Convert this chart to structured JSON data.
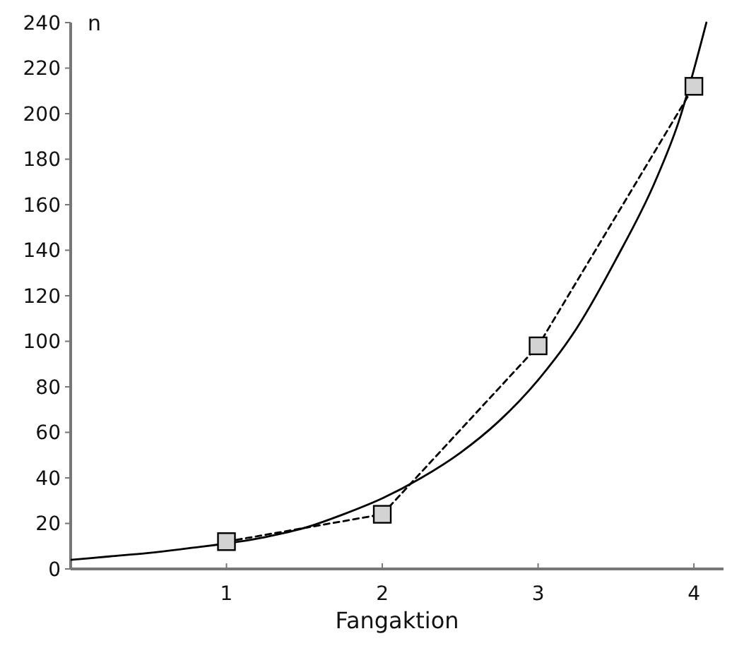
{
  "chart_data": {
    "type": "line",
    "xlabel": "Fangaktion",
    "ylabel": "n",
    "xlim": [
      0,
      4.19
    ],
    "ylim": [
      0,
      240
    ],
    "xticks": [
      1,
      2,
      3,
      4
    ],
    "yticks": [
      0,
      20,
      40,
      60,
      80,
      100,
      120,
      140,
      160,
      180,
      200,
      220,
      240
    ],
    "series": [
      {
        "color": "#000000",
        "x": [
          1,
          2,
          3,
          4
        ],
        "values": [
          12,
          24,
          98,
          212
        ],
        "marker": "square",
        "line_style": "dashed"
      },
      {
        "color": "#000000",
        "x": [
          0,
          0.25,
          0.5,
          0.75,
          1.25,
          1.5,
          1.75,
          2,
          2.25,
          2.5,
          2.75,
          3,
          3.25,
          3.5,
          3.75,
          3.9,
          4.08
        ],
        "values": [
          4,
          5.5,
          7,
          9,
          14,
          18,
          24,
          31,
          40,
          51,
          65,
          83,
          106,
          136,
          170,
          196,
          240
        ],
        "marker": "none",
        "line_style": "solid"
      }
    ]
  }
}
